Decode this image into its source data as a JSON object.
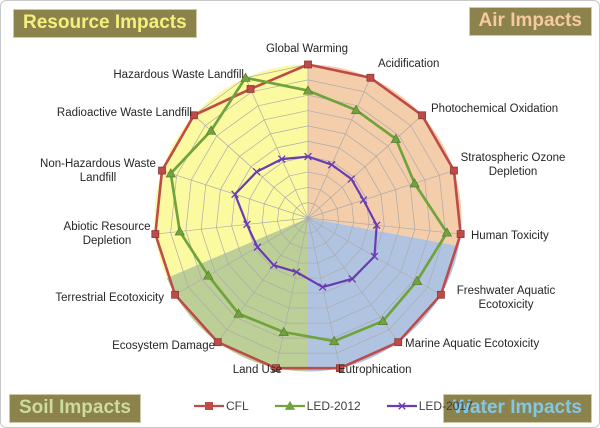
{
  "page": {
    "corner_labels": {
      "resource": "Resource Impacts",
      "air": "Air Impacts",
      "soil": "Soil Impacts",
      "water": "Water Impacts"
    },
    "badge_bg": "#8C824B"
  },
  "chart_data": {
    "type": "radar",
    "title": "",
    "scale": {
      "min": 0,
      "max": 10,
      "rings": 10,
      "tick_labels_visible": false
    },
    "grid_color": "#ABABAB",
    "axis_label_color": "#262626",
    "categories": [
      "Global Warming",
      "Acidification",
      "Photochemical Oxidation",
      "Stratospheric Ozone Depletion",
      "Human Toxicity",
      "Freshwater Aquatic Ecotoxicity",
      "Marine Aquatic Ecotoxicity",
      "Eutrophication",
      "Land Use",
      "Ecosystem Damage",
      "Terrestrial Ecotoxicity",
      "Abiotic Resource Depletion",
      "Non-Hazardous Waste Landfill",
      "Radioactive Waste Landfill",
      "Hazardous Waste Landfill"
    ],
    "category_label_lines": [
      [
        "Global Warming"
      ],
      [
        "Acidification"
      ],
      [
        "Photochemical Oxidation"
      ],
      [
        "Stratospheric Ozone",
        "Depletion"
      ],
      [
        "Human Toxicity"
      ],
      [
        "Freshwater Aquatic",
        "Ecotoxicity"
      ],
      [
        "Marine Aquatic Ecotoxicity"
      ],
      [
        "Eutrophication"
      ],
      [
        "Land Use"
      ],
      [
        "Ecosystem Damage"
      ],
      [
        "Terrestrial Ecotoxicity"
      ],
      [
        "Abiotic Resource",
        "Depletion"
      ],
      [
        "Non-Hazardous Waste",
        "Landfill"
      ],
      [
        "Radioactive Waste Landfill"
      ],
      [
        "Hazardous Waste Landfill"
      ]
    ],
    "series": [
      {
        "name": "CFL",
        "color": "#BE4B48",
        "marker": "square",
        "values": [
          10,
          10,
          10,
          10,
          10,
          10,
          10,
          10,
          10,
          10,
          10,
          10,
          10,
          10,
          9.2
        ]
      },
      {
        "name": "LED-2012",
        "color": "#70A33C",
        "marker": "triangle",
        "values": [
          8.3,
          7.7,
          7.7,
          7.3,
          9.1,
          8.2,
          8.3,
          8.2,
          7.6,
          7.7,
          7.5,
          8.4,
          9.4,
          8.5,
          10
        ]
      },
      {
        "name": "LED-2017",
        "color": "#693CB4",
        "marker": "x",
        "values": [
          4.0,
          3.8,
          3.8,
          3.8,
          4.5,
          5.0,
          4.9,
          4.6,
          3.6,
          3.8,
          3.8,
          4.0,
          5.0,
          4.5,
          4.2
        ]
      }
    ],
    "sectors": [
      {
        "name": "Air Impacts",
        "color": "#F4CDAA",
        "start_deg": -90,
        "end_deg": 10.5
      },
      {
        "name": "Water Impacts",
        "color": "#B0C4E2",
        "start_deg": 10.5,
        "end_deg": 90
      },
      {
        "name": "Soil Impacts",
        "color": "#BCCF96",
        "start_deg": 90,
        "end_deg": 157
      },
      {
        "name": "Resource Impacts",
        "color": "#FCFAA0",
        "start_deg": 157,
        "end_deg": 270
      }
    ],
    "legend": {
      "position": "bottom",
      "items": [
        "CFL",
        "LED-2012",
        "LED-2017"
      ]
    }
  }
}
